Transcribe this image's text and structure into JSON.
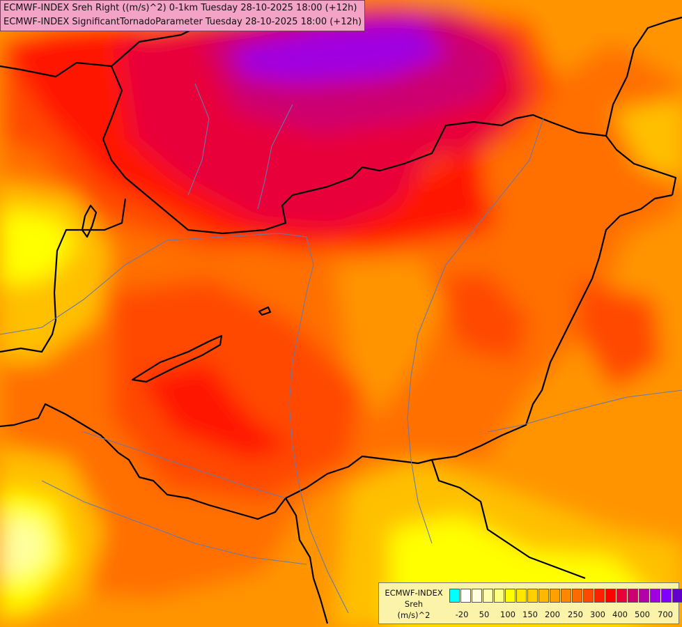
{
  "header": {
    "line1": "ECMWF-INDEX Sreh Right ((m/s)^2) 0-1km Tuesday 28-10-2025 18:00 (+12h)",
    "line2": "ECMWF-INDEX SignificantTornadoParameter Tuesday 28-10-2025 18:00 (+12h)"
  },
  "legend": {
    "title": "ECMWF-INDEX",
    "variable": "Sreh",
    "unit": "(m/s)^2",
    "colors": [
      "#00ffff",
      "#ffffff",
      "#fffde0",
      "#ffffb0",
      "#ffff80",
      "#ffff00",
      "#ffe800",
      "#ffd000",
      "#ffb800",
      "#ffa000",
      "#ff8800",
      "#ff6a00",
      "#ff4800",
      "#ff2000",
      "#ff0000",
      "#e8003a",
      "#cc0070",
      "#b400a8",
      "#a000e0",
      "#8000ff",
      "#6000c8",
      "#3c00a0",
      "#140070"
    ],
    "ticks": [
      "-20",
      "50",
      "100",
      "150",
      "200",
      "250",
      "300",
      "400",
      "500",
      "700"
    ]
  },
  "map_colors": {
    "violet": "#a000e0",
    "magenta": "#cc0070",
    "crimson": "#e8003a",
    "red": "#ff1800",
    "red_orange": "#ff4800",
    "orange": "#ff7000",
    "amber": "#ff9400",
    "gold": "#ffc000",
    "yellow": "#ffff00",
    "pale": "#ffffa0",
    "border": "#000000",
    "river": "#6a78a8"
  }
}
